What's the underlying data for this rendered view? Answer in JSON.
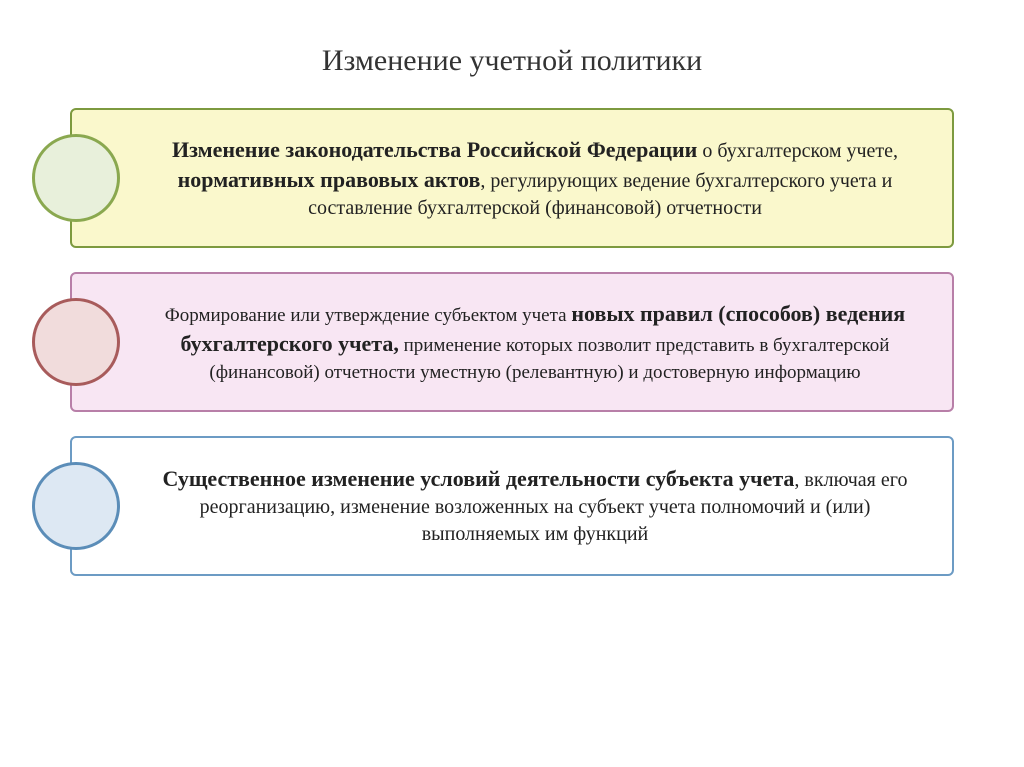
{
  "title": "Изменение учетной политики",
  "blocks": [
    {
      "circle_fill": "#e8f0db",
      "circle_border": "#8aa84f",
      "box_fill": "#faf8cc",
      "box_border": "#7d9a3f",
      "parts": [
        {
          "text": "Изменение законодательства Российской Федерации",
          "bold": true,
          "fontsize": 22
        },
        {
          "text": " о бухгалтерском учете, ",
          "bold": false,
          "fontsize": 20
        },
        {
          "text": "нормативных правовых актов",
          "bold": true,
          "fontsize": 22
        },
        {
          "text": ", регулирующих ведение бухгалтерского учета и составление бухгалтерской (финансовой) отчетности",
          "bold": false,
          "fontsize": 20
        }
      ]
    },
    {
      "circle_fill": "#f1dcdc",
      "circle_border": "#a85b5b",
      "box_fill": "#f8e6f3",
      "box_border": "#b87fa8",
      "parts": [
        {
          "text": "Формирование или утверждение субъектом учета ",
          "bold": false,
          "fontsize": 19
        },
        {
          "text": "новых правил (способов) ведения бухгалтерского учета,",
          "bold": true,
          "fontsize": 22
        },
        {
          "text": " применение которых позволит представить в бухгалтерской (финансовой) отчетности уместную (релевантную) и достоверную информацию",
          "bold": false,
          "fontsize": 19
        }
      ]
    },
    {
      "circle_fill": "#dde8f3",
      "circle_border": "#5b8db8",
      "box_fill": "#ffffff",
      "box_border": "#6c9bc4",
      "parts": [
        {
          "text": "Существенное изменение условий деятельности субъекта учета",
          "bold": true,
          "fontsize": 22
        },
        {
          "text": ", включая его реорганизацию, изменение возложенных на субъект учета полномочий и (или) выполняемых им функций",
          "bold": false,
          "fontsize": 20
        }
      ]
    }
  ]
}
